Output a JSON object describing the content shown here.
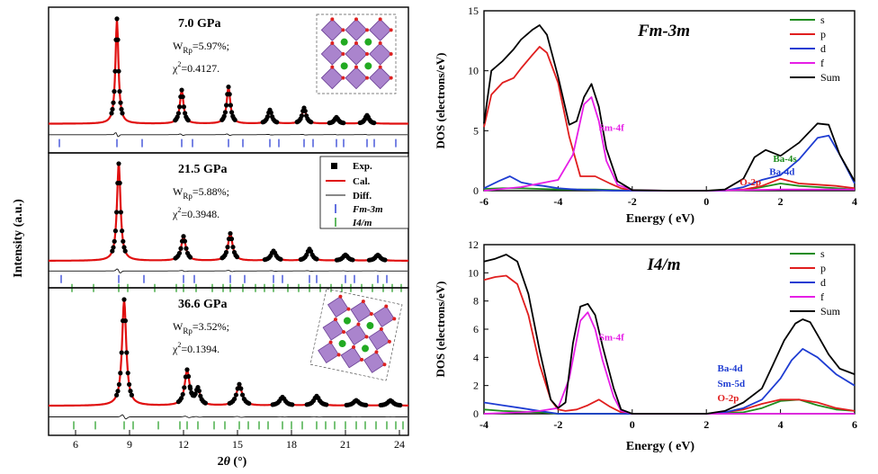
{
  "xrd": {
    "ylabel": "Intensity (a.u.)",
    "xlabel_main": "2",
    "xlabel_theta": "θ",
    "xlabel_unit": " (°)",
    "x_ticks": [
      "6",
      "9",
      "12",
      "15",
      "18",
      "21",
      "24"
    ],
    "xlim": [
      4.5,
      24.5
    ],
    "legend": {
      "exp": "Exp.",
      "cal": "Cal.",
      "diff": "Diff.",
      "fm": "Fm-3m",
      "i4": "I4/m"
    },
    "panels": [
      {
        "pressure": "7.0 GPa",
        "w_main": "W",
        "w_sub": "Rp",
        "w_val": "=5.97%;",
        "chi_main": "χ",
        "chi_sup": "2",
        "chi_val": "=0.4127.",
        "peaks": [
          [
            8.3,
            1.0,
            0.1
          ],
          [
            11.9,
            0.32,
            0.12
          ],
          [
            14.5,
            0.35,
            0.12
          ],
          [
            16.8,
            0.13,
            0.13
          ],
          [
            18.7,
            0.15,
            0.13
          ],
          [
            20.5,
            0.06,
            0.13
          ],
          [
            22.2,
            0.08,
            0.13
          ]
        ],
        "fm_ticks": [
          5.1,
          8.3,
          9.7,
          11.9,
          12.5,
          14.5,
          15.3,
          16.8,
          17.3,
          18.7,
          19.2,
          20.5,
          20.9,
          22.2,
          22.6,
          23.8
        ],
        "i4_ticks": []
      },
      {
        "pressure": "21.5 GPa",
        "w_main": "W",
        "w_sub": "Rp",
        "w_val": "=5.88%;",
        "chi_main": "χ",
        "chi_sup": "2",
        "chi_val": "=0.3948.",
        "peaks": [
          [
            8.4,
            1.0,
            0.12
          ],
          [
            12.0,
            0.25,
            0.15
          ],
          [
            14.6,
            0.28,
            0.15
          ],
          [
            17.0,
            0.1,
            0.16
          ],
          [
            19.0,
            0.12,
            0.16
          ],
          [
            21.0,
            0.06,
            0.16
          ],
          [
            22.8,
            0.06,
            0.16
          ]
        ],
        "fm_ticks": [
          5.2,
          8.4,
          9.8,
          12.0,
          12.6,
          14.6,
          15.4,
          17.0,
          17.5,
          19.0,
          19.4,
          21.0,
          21.5,
          22.8,
          23.3
        ],
        "i4_ticks": [
          5.8,
          7.0,
          8.4,
          8.9,
          10.4,
          11.6,
          12.0,
          12.7,
          13.6,
          14.2,
          14.6,
          15.3,
          16.0,
          16.5,
          17.0,
          17.8,
          18.4,
          19.0,
          19.6,
          20.2,
          20.8,
          21.3,
          21.9,
          22.5,
          23.1,
          23.6,
          24.1
        ]
      },
      {
        "pressure": "36.6 GPa",
        "w_main": "W",
        "w_sub": "Rp",
        "w_val": "=3.52%;",
        "chi_main": "χ",
        "chi_sup": "2",
        "chi_val": "=0.1394.",
        "peaks": [
          [
            8.7,
            1.0,
            0.14
          ],
          [
            12.2,
            0.33,
            0.16
          ],
          [
            12.8,
            0.15,
            0.14
          ],
          [
            15.1,
            0.2,
            0.18
          ],
          [
            17.5,
            0.08,
            0.18
          ],
          [
            19.4,
            0.09,
            0.18
          ],
          [
            21.6,
            0.05,
            0.18
          ],
          [
            23.5,
            0.05,
            0.18
          ]
        ],
        "fm_ticks": [],
        "i4_ticks": [
          5.9,
          7.1,
          8.7,
          9.2,
          10.6,
          11.8,
          12.2,
          12.8,
          13.7,
          14.3,
          15.1,
          15.6,
          16.2,
          16.7,
          17.5,
          18.0,
          18.6,
          19.4,
          19.9,
          20.4,
          21.0,
          21.6,
          22.1,
          22.7,
          23.3,
          23.8,
          24.2
        ]
      }
    ]
  },
  "chart_data": [
    {
      "type": "line",
      "title": "Fm-3m",
      "xlabel": "Energy ( eV)",
      "ylabel": "DOS (electrons/eV)",
      "xlim": [
        -6,
        4
      ],
      "ylim": [
        0,
        15
      ],
      "x_ticks": [
        "-6",
        "-4",
        "-2",
        "0",
        "2",
        "4"
      ],
      "y_ticks": [
        "0",
        "5",
        "10",
        "15"
      ],
      "legend_position": "top-right",
      "series": [
        {
          "name": "s",
          "color": "#1e8c1e",
          "x": [
            -6,
            -5.5,
            -5,
            -4.5,
            -4,
            -3.5,
            -3,
            -2.5,
            -2,
            -1,
            0,
            1,
            1.5,
            2,
            2.5,
            3,
            3.5,
            4
          ],
          "y": [
            0.15,
            0.2,
            0.2,
            0.15,
            0.1,
            0.1,
            0.1,
            0.05,
            0,
            0,
            0,
            0.05,
            0.3,
            0.6,
            0.4,
            0.3,
            0.2,
            0.1
          ]
        },
        {
          "name": "p",
          "color": "#e01e1e",
          "x": [
            -6,
            -5.8,
            -5.5,
            -5.2,
            -5,
            -4.7,
            -4.5,
            -4.3,
            -4,
            -3.7,
            -3.4,
            -3,
            -2.6,
            -2.3,
            -2,
            -1,
            0,
            1,
            1.5,
            2,
            2.5,
            3,
            3.5,
            4
          ],
          "y": [
            5.3,
            8.0,
            9.0,
            9.4,
            10.2,
            11.3,
            12.0,
            11.5,
            9.0,
            4.5,
            1.2,
            1.2,
            0.6,
            0.2,
            0,
            0,
            0,
            0.1,
            0.4,
            1.0,
            0.6,
            0.5,
            0.4,
            0.2
          ]
        },
        {
          "name": "d",
          "color": "#1e3cd2",
          "x": [
            -6,
            -5.6,
            -5.3,
            -5,
            -4.7,
            -4.4,
            -4,
            -3.5,
            -3,
            -2.5,
            -2,
            0.5,
            1,
            1.5,
            2,
            2.5,
            3,
            3.3,
            3.6,
            4
          ],
          "y": [
            0.2,
            0.8,
            1.2,
            0.7,
            0.5,
            0.4,
            0.2,
            0.1,
            0.05,
            0,
            0,
            0,
            0.3,
            0.9,
            1.3,
            2.6,
            4.4,
            4.6,
            3.0,
            0.6
          ]
        },
        {
          "name": "f",
          "color": "#e61ee6",
          "x": [
            -6,
            -5,
            -4.5,
            -4,
            -3.6,
            -3.3,
            -3.1,
            -2.9,
            -2.7,
            -2.4,
            -2,
            -1,
            0,
            2,
            4
          ],
          "y": [
            0,
            0.3,
            0.6,
            0.9,
            3.0,
            7.2,
            7.8,
            5.8,
            2.5,
            0.5,
            0.05,
            0,
            0,
            0.1,
            0.1
          ]
        },
        {
          "name": "Sum",
          "color": "#000000",
          "x": [
            -6,
            -5.8,
            -5.5,
            -5.2,
            -5,
            -4.7,
            -4.5,
            -4.3,
            -4,
            -3.7,
            -3.5,
            -3.3,
            -3.1,
            -2.9,
            -2.7,
            -2.4,
            -2,
            -1,
            0,
            0.5,
            1,
            1.3,
            1.6,
            2,
            2.5,
            3,
            3.3,
            3.6,
            4
          ],
          "y": [
            5.6,
            10.0,
            10.8,
            11.8,
            12.6,
            13.4,
            13.8,
            13.0,
            9.5,
            5.5,
            5.8,
            7.8,
            8.9,
            7.0,
            3.5,
            0.8,
            0.05,
            0,
            0,
            0.1,
            1.0,
            2.8,
            3.4,
            2.9,
            4.0,
            5.6,
            5.5,
            3.0,
            0.8
          ]
        }
      ],
      "annotations": [
        {
          "text": "Sm-4f",
          "color": "#e61ee6",
          "x": -2.9,
          "y": 5.0
        },
        {
          "text": "Ba-4s",
          "color": "#1e8c1e",
          "x": 1.8,
          "y": 2.4
        },
        {
          "text": "Ba-4d",
          "color": "#1e3cd2",
          "x": 1.7,
          "y": 1.3
        },
        {
          "text": "O-2p",
          "color": "#e01e1e",
          "x": 0.9,
          "y": 0.45
        }
      ]
    },
    {
      "type": "line",
      "title": "I4/m",
      "xlabel": "Energy ( eV)",
      "ylabel": "DOS (electrons/eV)",
      "xlim": [
        -4,
        6
      ],
      "ylim": [
        0,
        12
      ],
      "x_ticks": [
        "-4",
        "-2",
        "0",
        "2",
        "4",
        "6"
      ],
      "y_ticks": [
        "0",
        "2",
        "4",
        "6",
        "8",
        "10",
        "12"
      ],
      "legend_position": "top-right",
      "series": [
        {
          "name": "s",
          "color": "#1e8c1e",
          "x": [
            -4,
            -3.5,
            -3,
            -2.5,
            -2,
            -1,
            0,
            2,
            3,
            3.5,
            4,
            4.5,
            5,
            5.5,
            6
          ],
          "y": [
            0.3,
            0.2,
            0.15,
            0.1,
            0,
            0,
            0,
            0,
            0.1,
            0.4,
            0.9,
            1.0,
            0.6,
            0.3,
            0.2
          ]
        },
        {
          "name": "p",
          "color": "#e01e1e",
          "x": [
            -4,
            -3.7,
            -3.4,
            -3.1,
            -2.8,
            -2.5,
            -2.2,
            -2,
            -1.8,
            -1.5,
            -1.2,
            -0.9,
            -0.6,
            -0.3,
            0,
            2,
            2.5,
            3,
            3.5,
            4,
            4.5,
            5,
            5.5,
            6
          ],
          "y": [
            9.5,
            9.7,
            9.8,
            9.2,
            7.0,
            3.5,
            1.0,
            0.3,
            0.2,
            0.3,
            0.6,
            1.0,
            0.5,
            0.1,
            0,
            0,
            0.1,
            0.3,
            0.7,
            1.0,
            1.0,
            0.8,
            0.4,
            0.2
          ]
        },
        {
          "name": "d",
          "color": "#1e3cd2",
          "x": [
            -4,
            -3.5,
            -3,
            -2.5,
            -2,
            -1,
            0,
            2,
            2.5,
            3,
            3.5,
            4,
            4.3,
            4.6,
            5,
            5.5,
            6
          ],
          "y": [
            0.8,
            0.6,
            0.4,
            0.2,
            0,
            0,
            0,
            0,
            0.1,
            0.4,
            1.0,
            2.5,
            3.8,
            4.6,
            4.0,
            2.8,
            2.0
          ]
        },
        {
          "name": "f",
          "color": "#e61ee6",
          "x": [
            -4,
            -3,
            -2.5,
            -2,
            -1.7,
            -1.4,
            -1.2,
            -1.0,
            -0.8,
            -0.5,
            -0.3,
            0,
            2,
            6
          ],
          "y": [
            0,
            0.1,
            0.2,
            0.4,
            2.5,
            6.6,
            7.2,
            6.0,
            3.8,
            1.2,
            0.2,
            0,
            0,
            0
          ]
        },
        {
          "name": "Sum",
          "color": "#000000",
          "x": [
            -4,
            -3.7,
            -3.4,
            -3.1,
            -2.8,
            -2.5,
            -2.2,
            -2,
            -1.8,
            -1.6,
            -1.4,
            -1.2,
            -1.0,
            -0.8,
            -0.5,
            -0.3,
            0,
            2,
            2.5,
            3,
            3.5,
            3.8,
            4.1,
            4.4,
            4.6,
            4.8,
            5,
            5.3,
            5.6,
            6
          ],
          "y": [
            10.8,
            11.0,
            11.3,
            10.8,
            8.5,
            4.5,
            1.0,
            0.4,
            0.8,
            5.0,
            7.6,
            7.8,
            7.0,
            4.8,
            1.8,
            0.3,
            0,
            0,
            0.2,
            0.8,
            1.8,
            3.5,
            5.2,
            6.4,
            6.7,
            6.5,
            5.6,
            4.2,
            3.2,
            2.8
          ]
        }
      ],
      "annotations": [
        {
          "text": "Sm-4f",
          "color": "#e61ee6",
          "x": -0.9,
          "y": 5.2
        },
        {
          "text": "Ba-4d",
          "color": "#1e3cd2",
          "x": 2.3,
          "y": 3.0
        },
        {
          "text": "Sm-5d",
          "color": "#1e3cd2",
          "x": 2.3,
          "y": 1.9
        },
        {
          "text": "O-2p",
          "color": "#e01e1e",
          "x": 2.3,
          "y": 0.9
        }
      ]
    }
  ],
  "colors": {
    "exp": "#000000",
    "cal": "#e01010",
    "diff": "#111111",
    "fm": "#1e32d2",
    "i4": "#1e9b1e"
  }
}
